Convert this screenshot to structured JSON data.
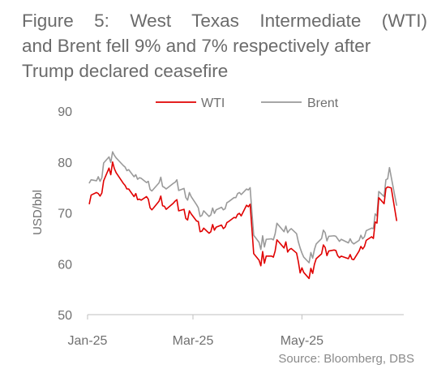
{
  "title_lines": [
    "Figure 5: West Texas Intermediate (WTI)",
    "and Brent fell 9% and 7% respectively after",
    "Trump declared ceasefire"
  ],
  "source": "Source: Bloomberg, DBS",
  "colors": {
    "wti": "#e00000",
    "brent": "#9a9a9a",
    "axis": "#bfbfbf"
  },
  "chart_data": {
    "type": "line",
    "title": "Figure 5: West Texas Intermediate (WTI) and Brent fell 9% and 7% respectively after Trump declared ceasefire",
    "ylabel": "USD/bbl",
    "xlabel": "",
    "ylim": [
      50,
      90
    ],
    "yticks": [
      "50",
      "60",
      "70",
      "80",
      "90"
    ],
    "xlim": [
      "2025-01-01",
      "2025-06-27"
    ],
    "xticks": [
      {
        "label": "Jan-25",
        "date": "2025-01-01"
      },
      {
        "label": "Mar-25",
        "date": "2025-03-01"
      },
      {
        "label": "May-25",
        "date": "2025-05-01"
      }
    ],
    "legend_position": "top",
    "series": [
      {
        "name": "WTI",
        "points": [
          [
            "2025-01-02",
            71.8
          ],
          [
            "2025-01-03",
            73.5
          ],
          [
            "2025-01-06",
            74.0
          ],
          [
            "2025-01-07",
            73.8
          ],
          [
            "2025-01-08",
            73.3
          ],
          [
            "2025-01-09",
            73.9
          ],
          [
            "2025-01-10",
            76.3
          ],
          [
            "2025-01-13",
            78.8
          ],
          [
            "2025-01-14",
            77.5
          ],
          [
            "2025-01-15",
            80.0
          ],
          [
            "2025-01-16",
            78.7
          ],
          [
            "2025-01-17",
            77.9
          ],
          [
            "2025-01-21",
            75.8
          ],
          [
            "2025-01-22",
            75.4
          ],
          [
            "2025-01-23",
            74.7
          ],
          [
            "2025-01-24",
            74.7
          ],
          [
            "2025-01-27",
            73.2
          ],
          [
            "2025-01-28",
            73.8
          ],
          [
            "2025-01-29",
            72.6
          ],
          [
            "2025-01-30",
            72.7
          ],
          [
            "2025-01-31",
            72.5
          ],
          [
            "2025-02-03",
            73.2
          ],
          [
            "2025-02-04",
            72.7
          ],
          [
            "2025-02-05",
            71.0
          ],
          [
            "2025-02-06",
            70.6
          ],
          [
            "2025-02-07",
            71.0
          ],
          [
            "2025-02-10",
            72.3
          ],
          [
            "2025-02-11",
            73.3
          ],
          [
            "2025-02-12",
            71.4
          ],
          [
            "2025-02-13",
            71.3
          ],
          [
            "2025-02-14",
            70.7
          ],
          [
            "2025-02-18",
            71.9
          ],
          [
            "2025-02-19",
            72.3
          ],
          [
            "2025-02-20",
            72.6
          ],
          [
            "2025-02-21",
            70.4
          ],
          [
            "2025-02-24",
            70.7
          ],
          [
            "2025-02-25",
            68.9
          ],
          [
            "2025-02-26",
            68.6
          ],
          [
            "2025-02-27",
            70.4
          ],
          [
            "2025-02-28",
            69.8
          ],
          [
            "2025-03-03",
            68.4
          ],
          [
            "2025-03-04",
            68.3
          ],
          [
            "2025-03-05",
            66.3
          ],
          [
            "2025-03-06",
            66.4
          ],
          [
            "2025-03-07",
            67.0
          ],
          [
            "2025-03-10",
            66.0
          ],
          [
            "2025-03-11",
            66.3
          ],
          [
            "2025-03-12",
            67.7
          ],
          [
            "2025-03-13",
            66.6
          ],
          [
            "2025-03-14",
            67.2
          ],
          [
            "2025-03-17",
            67.6
          ],
          [
            "2025-03-18",
            66.9
          ],
          [
            "2025-03-19",
            67.2
          ],
          [
            "2025-03-20",
            68.1
          ],
          [
            "2025-03-21",
            68.3
          ],
          [
            "2025-03-24",
            69.1
          ],
          [
            "2025-03-25",
            69.0
          ],
          [
            "2025-03-26",
            69.7
          ],
          [
            "2025-03-27",
            69.9
          ],
          [
            "2025-03-28",
            69.4
          ],
          [
            "2025-03-31",
            71.5
          ],
          [
            "2025-04-01",
            71.2
          ],
          [
            "2025-04-02",
            71.7
          ],
          [
            "2025-04-03",
            66.9
          ],
          [
            "2025-04-04",
            61.99
          ],
          [
            "2025-04-07",
            60.7
          ],
          [
            "2025-04-08",
            59.6
          ],
          [
            "2025-04-09",
            62.4
          ],
          [
            "2025-04-10",
            60.1
          ],
          [
            "2025-04-11",
            61.5
          ],
          [
            "2025-04-14",
            61.5
          ],
          [
            "2025-04-15",
            61.3
          ],
          [
            "2025-04-16",
            62.5
          ],
          [
            "2025-04-17",
            64.7
          ],
          [
            "2025-04-21",
            63.1
          ],
          [
            "2025-04-22",
            64.3
          ],
          [
            "2025-04-23",
            62.3
          ],
          [
            "2025-04-24",
            62.8
          ],
          [
            "2025-04-25",
            63.0
          ],
          [
            "2025-04-28",
            62.1
          ],
          [
            "2025-04-29",
            60.4
          ],
          [
            "2025-04-30",
            58.2
          ],
          [
            "2025-05-01",
            59.2
          ],
          [
            "2025-05-02",
            58.3
          ],
          [
            "2025-05-05",
            57.1
          ],
          [
            "2025-05-06",
            59.1
          ],
          [
            "2025-05-07",
            58.1
          ],
          [
            "2025-05-08",
            59.9
          ],
          [
            "2025-05-09",
            61.0
          ],
          [
            "2025-05-12",
            61.95
          ],
          [
            "2025-05-13",
            63.7
          ],
          [
            "2025-05-14",
            63.2
          ],
          [
            "2025-05-15",
            61.6
          ],
          [
            "2025-05-16",
            62.5
          ],
          [
            "2025-05-19",
            62.7
          ],
          [
            "2025-05-20",
            62.6
          ],
          [
            "2025-05-21",
            61.6
          ],
          [
            "2025-05-22",
            61.2
          ],
          [
            "2025-05-23",
            61.5
          ],
          [
            "2025-05-27",
            61.0
          ],
          [
            "2025-05-28",
            61.8
          ],
          [
            "2025-05-29",
            60.9
          ],
          [
            "2025-05-30",
            60.8
          ],
          [
            "2025-06-02",
            62.5
          ],
          [
            "2025-06-03",
            63.4
          ],
          [
            "2025-06-04",
            62.9
          ],
          [
            "2025-06-05",
            63.4
          ],
          [
            "2025-06-06",
            64.6
          ],
          [
            "2025-06-09",
            65.3
          ],
          [
            "2025-06-10",
            64.98
          ],
          [
            "2025-06-11",
            68.2
          ],
          [
            "2025-06-12",
            68.0
          ],
          [
            "2025-06-13",
            72.98
          ],
          [
            "2025-06-16",
            71.8
          ],
          [
            "2025-06-17",
            74.8
          ],
          [
            "2025-06-18",
            75.1
          ],
          [
            "2025-06-19",
            75.0
          ],
          [
            "2025-06-20",
            74.9
          ],
          [
            "2025-06-23",
            68.5
          ]
        ]
      },
      {
        "name": "Brent",
        "points": [
          [
            "2025-01-02",
            75.9
          ],
          [
            "2025-01-03",
            76.5
          ],
          [
            "2025-01-06",
            76.3
          ],
          [
            "2025-01-07",
            77.1
          ],
          [
            "2025-01-08",
            76.2
          ],
          [
            "2025-01-09",
            76.9
          ],
          [
            "2025-01-10",
            79.8
          ],
          [
            "2025-01-13",
            81.0
          ],
          [
            "2025-01-14",
            79.9
          ],
          [
            "2025-01-15",
            82.0
          ],
          [
            "2025-01-16",
            81.3
          ],
          [
            "2025-01-17",
            80.8
          ],
          [
            "2025-01-21",
            79.3
          ],
          [
            "2025-01-22",
            79.0
          ],
          [
            "2025-01-23",
            78.3
          ],
          [
            "2025-01-24",
            78.5
          ],
          [
            "2025-01-27",
            77.1
          ],
          [
            "2025-01-28",
            77.5
          ],
          [
            "2025-01-29",
            76.6
          ],
          [
            "2025-01-30",
            76.9
          ],
          [
            "2025-01-31",
            76.8
          ],
          [
            "2025-02-03",
            75.96
          ],
          [
            "2025-02-04",
            76.2
          ],
          [
            "2025-02-05",
            74.6
          ],
          [
            "2025-02-06",
            74.3
          ],
          [
            "2025-02-07",
            74.7
          ],
          [
            "2025-02-10",
            75.9
          ],
          [
            "2025-02-11",
            77.0
          ],
          [
            "2025-02-12",
            75.2
          ],
          [
            "2025-02-13",
            75.0
          ],
          [
            "2025-02-14",
            74.7
          ],
          [
            "2025-02-18",
            75.8
          ],
          [
            "2025-02-19",
            76.0
          ],
          [
            "2025-02-20",
            76.5
          ],
          [
            "2025-02-21",
            74.4
          ],
          [
            "2025-02-24",
            74.8
          ],
          [
            "2025-02-25",
            73.0
          ],
          [
            "2025-02-26",
            72.5
          ],
          [
            "2025-02-27",
            74.0
          ],
          [
            "2025-02-28",
            73.2
          ],
          [
            "2025-03-03",
            71.6
          ],
          [
            "2025-03-04",
            71.0
          ],
          [
            "2025-03-05",
            69.3
          ],
          [
            "2025-03-06",
            69.5
          ],
          [
            "2025-03-07",
            70.4
          ],
          [
            "2025-03-10",
            69.3
          ],
          [
            "2025-03-11",
            69.6
          ],
          [
            "2025-03-12",
            70.95
          ],
          [
            "2025-03-13",
            69.9
          ],
          [
            "2025-03-14",
            70.6
          ],
          [
            "2025-03-17",
            71.1
          ],
          [
            "2025-03-18",
            70.6
          ],
          [
            "2025-03-19",
            70.8
          ],
          [
            "2025-03-20",
            72.0
          ],
          [
            "2025-03-21",
            72.2
          ],
          [
            "2025-03-24",
            73.0
          ],
          [
            "2025-03-25",
            73.0
          ],
          [
            "2025-03-26",
            73.8
          ],
          [
            "2025-03-27",
            74.0
          ],
          [
            "2025-03-28",
            73.6
          ],
          [
            "2025-03-31",
            74.7
          ],
          [
            "2025-04-01",
            74.5
          ],
          [
            "2025-04-02",
            74.95
          ],
          [
            "2025-04-03",
            70.1
          ],
          [
            "2025-04-04",
            65.6
          ],
          [
            "2025-04-07",
            64.2
          ],
          [
            "2025-04-08",
            62.8
          ],
          [
            "2025-04-09",
            65.5
          ],
          [
            "2025-04-10",
            63.3
          ],
          [
            "2025-04-11",
            64.8
          ],
          [
            "2025-04-14",
            64.9
          ],
          [
            "2025-04-15",
            64.7
          ],
          [
            "2025-04-16",
            65.9
          ],
          [
            "2025-04-17",
            67.96
          ],
          [
            "2025-04-21",
            66.3
          ],
          [
            "2025-04-22",
            67.4
          ],
          [
            "2025-04-23",
            66.1
          ],
          [
            "2025-04-24",
            66.6
          ],
          [
            "2025-04-25",
            66.9
          ],
          [
            "2025-04-28",
            65.9
          ],
          [
            "2025-04-29",
            64.3
          ],
          [
            "2025-04-30",
            63.1
          ],
          [
            "2025-05-01",
            62.1
          ],
          [
            "2025-05-02",
            61.3
          ],
          [
            "2025-05-05",
            60.2
          ],
          [
            "2025-05-06",
            62.2
          ],
          [
            "2025-05-07",
            61.1
          ],
          [
            "2025-05-08",
            62.8
          ],
          [
            "2025-05-09",
            63.9
          ],
          [
            "2025-05-12",
            64.96
          ],
          [
            "2025-05-13",
            66.6
          ],
          [
            "2025-05-14",
            66.1
          ],
          [
            "2025-05-15",
            64.5
          ],
          [
            "2025-05-16",
            65.4
          ],
          [
            "2025-05-19",
            65.5
          ],
          [
            "2025-05-20",
            65.4
          ],
          [
            "2025-05-21",
            64.9
          ],
          [
            "2025-05-22",
            64.4
          ],
          [
            "2025-05-23",
            64.8
          ],
          [
            "2025-05-27",
            64.1
          ],
          [
            "2025-05-28",
            64.9
          ],
          [
            "2025-05-29",
            64.2
          ],
          [
            "2025-05-30",
            63.9
          ],
          [
            "2025-06-02",
            64.6
          ],
          [
            "2025-06-03",
            65.6
          ],
          [
            "2025-06-04",
            64.9
          ],
          [
            "2025-06-05",
            65.3
          ],
          [
            "2025-06-06",
            66.5
          ],
          [
            "2025-06-09",
            67.0
          ],
          [
            "2025-06-10",
            66.9
          ],
          [
            "2025-06-11",
            69.8
          ],
          [
            "2025-06-12",
            69.4
          ],
          [
            "2025-06-13",
            74.2
          ],
          [
            "2025-06-16",
            73.2
          ],
          [
            "2025-06-17",
            76.5
          ],
          [
            "2025-06-18",
            76.7
          ],
          [
            "2025-06-19",
            78.9
          ],
          [
            "2025-06-20",
            77.0
          ],
          [
            "2025-06-23",
            71.5
          ]
        ]
      }
    ]
  }
}
